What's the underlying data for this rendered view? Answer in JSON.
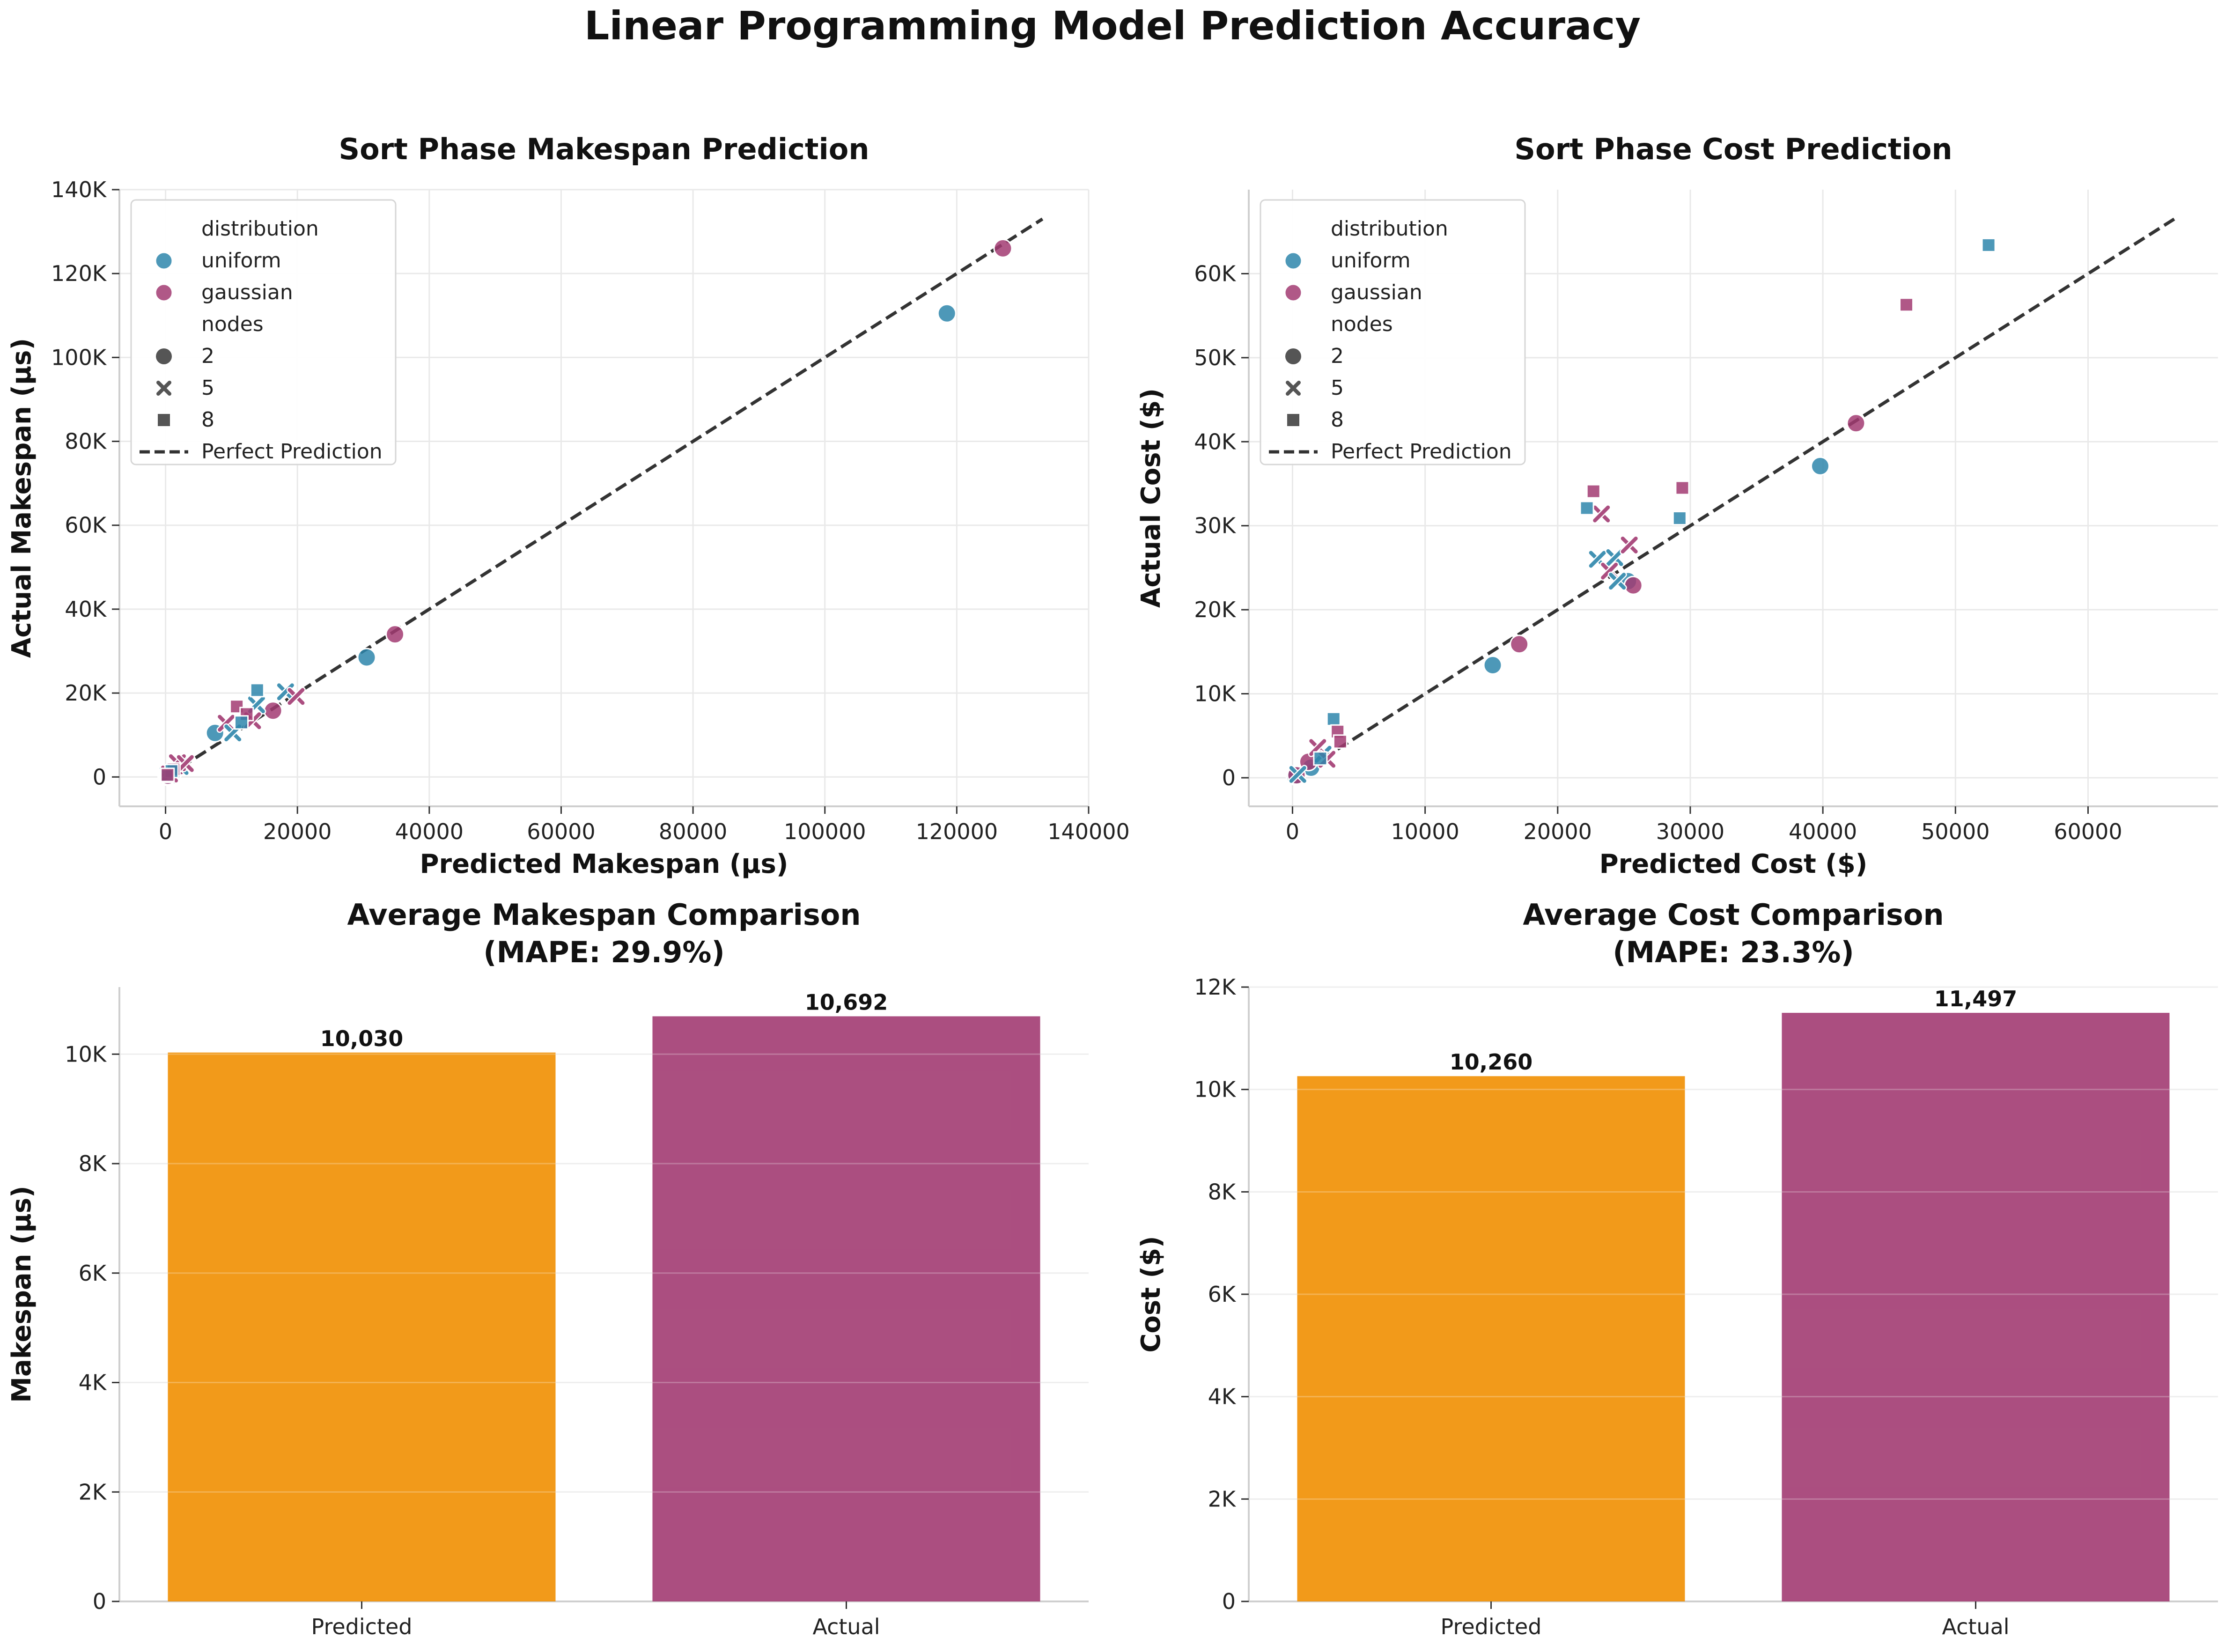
{
  "suptitle": "Linear Programming Model Prediction Accuracy",
  "colors": {
    "uniform": "#2E86AB",
    "gaussian": "#A23B72",
    "predicted_bar": "#F18F01",
    "actual_bar": "#A23B72",
    "perfect_line": "#333333",
    "grid": "#e9e9e9"
  },
  "chart_data": [
    {
      "type": "scatter",
      "title": "Sort Phase Makespan Prediction",
      "xlabel": "Predicted Makespan (μs)",
      "ylabel": "Actual Makespan (μs)",
      "xlim": [
        -7000,
        140000
      ],
      "ylim": [
        -7000,
        140000
      ],
      "xticks": [
        0,
        20000,
        40000,
        60000,
        80000,
        100000,
        120000,
        140000
      ],
      "xtick_labels": [
        "0",
        "20000",
        "40000",
        "60000",
        "80000",
        "100000",
        "120000",
        "140000"
      ],
      "yticks": [
        0,
        20000,
        40000,
        60000,
        80000,
        100000,
        120000,
        140000
      ],
      "ytick_labels": [
        "0",
        "20K",
        "40K",
        "60K",
        "80K",
        "100K",
        "120K",
        "140K"
      ],
      "grid": true,
      "legend": {
        "placement": "top-left",
        "hue_title": "distribution",
        "size_title": "nodes",
        "hue_entries": [
          "uniform",
          "gaussian"
        ],
        "marker_entries": [
          {
            "label": "2",
            "marker": "circle"
          },
          {
            "label": "5",
            "marker": "x"
          },
          {
            "label": "8",
            "marker": "square"
          }
        ],
        "line_entry": "Perfect Prediction"
      },
      "perfect_line": {
        "label": "Perfect Prediction",
        "from": [
          0,
          0
        ],
        "to": [
          133000,
          133000
        ]
      },
      "points": [
        {
          "x": 118500,
          "y": 110500,
          "distribution": "uniform",
          "nodes": 2
        },
        {
          "x": 127000,
          "y": 126000,
          "distribution": "gaussian",
          "nodes": 2
        },
        {
          "x": 30500,
          "y": 28500,
          "distribution": "uniform",
          "nodes": 2
        },
        {
          "x": 34800,
          "y": 34000,
          "distribution": "gaussian",
          "nodes": 2
        },
        {
          "x": 7500,
          "y": 10500,
          "distribution": "uniform",
          "nodes": 2
        },
        {
          "x": 16300,
          "y": 15800,
          "distribution": "gaussian",
          "nodes": 2
        },
        {
          "x": 1300,
          "y": 1500,
          "distribution": "uniform",
          "nodes": 2
        },
        {
          "x": 2200,
          "y": 2600,
          "distribution": "gaussian",
          "nodes": 2
        },
        {
          "x": 200,
          "y": 150,
          "distribution": "uniform",
          "nodes": 2
        },
        {
          "x": 350,
          "y": 300,
          "distribution": "gaussian",
          "nodes": 2
        },
        {
          "x": 18200,
          "y": 20300,
          "distribution": "uniform",
          "nodes": 5
        },
        {
          "x": 19800,
          "y": 19200,
          "distribution": "gaussian",
          "nodes": 5
        },
        {
          "x": 13800,
          "y": 17200,
          "distribution": "uniform",
          "nodes": 5
        },
        {
          "x": 9200,
          "y": 12800,
          "distribution": "gaussian",
          "nodes": 5
        },
        {
          "x": 10200,
          "y": 10500,
          "distribution": "uniform",
          "nodes": 5
        },
        {
          "x": 13200,
          "y": 13400,
          "distribution": "gaussian",
          "nodes": 5
        },
        {
          "x": 2200,
          "y": 2500,
          "distribution": "uniform",
          "nodes": 5
        },
        {
          "x": 1800,
          "y": 3400,
          "distribution": "gaussian",
          "nodes": 5
        },
        {
          "x": 3000,
          "y": 3200,
          "distribution": "gaussian",
          "nodes": 5
        },
        {
          "x": 400,
          "y": 500,
          "distribution": "uniform",
          "nodes": 5
        },
        {
          "x": 600,
          "y": 700,
          "distribution": "gaussian",
          "nodes": 5
        },
        {
          "x": 13900,
          "y": 20700,
          "distribution": "uniform",
          "nodes": 8
        },
        {
          "x": 10800,
          "y": 16800,
          "distribution": "gaussian",
          "nodes": 8
        },
        {
          "x": 12300,
          "y": 15000,
          "distribution": "gaussian",
          "nodes": 8
        },
        {
          "x": 11500,
          "y": 13000,
          "distribution": "uniform",
          "nodes": 8
        },
        {
          "x": 1200,
          "y": 1800,
          "distribution": "gaussian",
          "nodes": 8
        },
        {
          "x": 900,
          "y": 1400,
          "distribution": "uniform",
          "nodes": 8
        },
        {
          "x": 150,
          "y": 250,
          "distribution": "uniform",
          "nodes": 8
        },
        {
          "x": 300,
          "y": 500,
          "distribution": "gaussian",
          "nodes": 8
        }
      ]
    },
    {
      "type": "scatter",
      "title": "Sort Phase Cost Prediction",
      "xlabel": "Predicted Cost ($)",
      "ylabel": "Actual Cost ($)",
      "xlim": [
        -3300,
        69800
      ],
      "ylim": [
        -3400,
        70000
      ],
      "xticks": [
        0,
        10000,
        20000,
        30000,
        40000,
        50000,
        60000
      ],
      "xtick_labels": [
        "0",
        "10000",
        "20000",
        "30000",
        "40000",
        "50000",
        "60000"
      ],
      "yticks": [
        0,
        10000,
        20000,
        30000,
        40000,
        50000,
        60000
      ],
      "ytick_labels": [
        "0",
        "10K",
        "20K",
        "30K",
        "40K",
        "50K",
        "60K"
      ],
      "grid": true,
      "legend": {
        "placement": "top-left",
        "hue_title": "distribution",
        "size_title": "nodes",
        "hue_entries": [
          "uniform",
          "gaussian"
        ],
        "marker_entries": [
          {
            "label": "2",
            "marker": "circle"
          },
          {
            "label": "5",
            "marker": "x"
          },
          {
            "label": "8",
            "marker": "square"
          }
        ],
        "line_entry": "Perfect Prediction"
      },
      "perfect_line": {
        "label": "Perfect Prediction",
        "from": [
          0,
          0
        ],
        "to": [
          66500,
          66500
        ]
      },
      "points": [
        {
          "x": 39800,
          "y": 37100,
          "distribution": "uniform",
          "nodes": 2
        },
        {
          "x": 42500,
          "y": 42200,
          "distribution": "gaussian",
          "nodes": 2
        },
        {
          "x": 15100,
          "y": 13400,
          "distribution": "uniform",
          "nodes": 2
        },
        {
          "x": 17100,
          "y": 15900,
          "distribution": "gaussian",
          "nodes": 2
        },
        {
          "x": 25300,
          "y": 23400,
          "distribution": "uniform",
          "nodes": 2
        },
        {
          "x": 25700,
          "y": 22900,
          "distribution": "gaussian",
          "nodes": 2
        },
        {
          "x": 1400,
          "y": 1200,
          "distribution": "uniform",
          "nodes": 2
        },
        {
          "x": 1200,
          "y": 1900,
          "distribution": "gaussian",
          "nodes": 2
        },
        {
          "x": 200,
          "y": 200,
          "distribution": "uniform",
          "nodes": 2
        },
        {
          "x": 300,
          "y": 300,
          "distribution": "gaussian",
          "nodes": 2
        },
        {
          "x": 23000,
          "y": 26000,
          "distribution": "uniform",
          "nodes": 5
        },
        {
          "x": 24300,
          "y": 26200,
          "distribution": "uniform",
          "nodes": 5
        },
        {
          "x": 23300,
          "y": 31400,
          "distribution": "gaussian",
          "nodes": 5
        },
        {
          "x": 25400,
          "y": 27700,
          "distribution": "gaussian",
          "nodes": 5
        },
        {
          "x": 23900,
          "y": 24600,
          "distribution": "gaussian",
          "nodes": 5
        },
        {
          "x": 24500,
          "y": 23400,
          "distribution": "uniform",
          "nodes": 5
        },
        {
          "x": 2300,
          "y": 2800,
          "distribution": "uniform",
          "nodes": 5
        },
        {
          "x": 1900,
          "y": 3600,
          "distribution": "gaussian",
          "nodes": 5
        },
        {
          "x": 2600,
          "y": 2200,
          "distribution": "gaussian",
          "nodes": 5
        },
        {
          "x": 400,
          "y": 400,
          "distribution": "uniform",
          "nodes": 5
        },
        {
          "x": 52500,
          "y": 63400,
          "distribution": "uniform",
          "nodes": 8
        },
        {
          "x": 46300,
          "y": 56300,
          "distribution": "gaussian",
          "nodes": 8
        },
        {
          "x": 22200,
          "y": 32100,
          "distribution": "uniform",
          "nodes": 8
        },
        {
          "x": 22700,
          "y": 34100,
          "distribution": "gaussian",
          "nodes": 8
        },
        {
          "x": 29200,
          "y": 30900,
          "distribution": "uniform",
          "nodes": 8
        },
        {
          "x": 29400,
          "y": 34500,
          "distribution": "gaussian",
          "nodes": 8
        },
        {
          "x": 3100,
          "y": 7000,
          "distribution": "uniform",
          "nodes": 8
        },
        {
          "x": 3400,
          "y": 5500,
          "distribution": "gaussian",
          "nodes": 8
        },
        {
          "x": 3600,
          "y": 4300,
          "distribution": "gaussian",
          "nodes": 8
        },
        {
          "x": 2100,
          "y": 2300,
          "distribution": "uniform",
          "nodes": 8
        }
      ]
    },
    {
      "type": "bar",
      "title": "Average Makespan Comparison\n(MAPE: 29.9%)",
      "title_lines": [
        "Average Makespan Comparison",
        "(MAPE: 29.9%)"
      ],
      "xlabel": "",
      "ylabel": "Makespan (μs)",
      "categories": [
        "Predicted",
        "Actual"
      ],
      "values": [
        10030,
        10692
      ],
      "value_labels": [
        "10,030",
        "10,692"
      ],
      "ylim": [
        0,
        11226
      ],
      "yticks": [
        0,
        2000,
        4000,
        6000,
        8000,
        10000
      ],
      "ytick_labels": [
        "0",
        "2K",
        "4K",
        "6K",
        "8K",
        "10K"
      ],
      "grid": true
    },
    {
      "type": "bar",
      "title": "Average Cost Comparison\n(MAPE: 23.3%)",
      "title_lines": [
        "Average Cost Comparison",
        "(MAPE: 23.3%)"
      ],
      "xlabel": "",
      "ylabel": "Cost ($)",
      "categories": [
        "Predicted",
        "Actual"
      ],
      "values": [
        10260,
        11497
      ],
      "value_labels": [
        "10,260",
        "11,497"
      ],
      "ylim": [
        0,
        12000
      ],
      "yticks": [
        0,
        2000,
        4000,
        6000,
        8000,
        10000,
        12000
      ],
      "ytick_labels": [
        "0",
        "2K",
        "4K",
        "6K",
        "8K",
        "10K",
        "12K"
      ],
      "grid": true
    }
  ]
}
